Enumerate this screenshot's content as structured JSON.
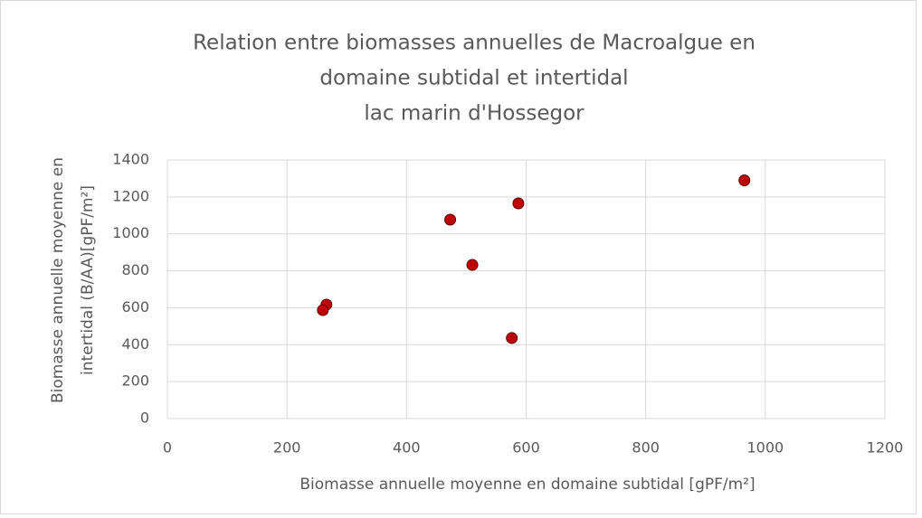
{
  "chart_data": {
    "type": "scatter",
    "title": [
      "Relation entre biomasses annuelles de Macroalgue en",
      "domaine subtidal et intertidal",
      "lac marin d'Hossegor"
    ],
    "x_label": "Biomasse annuelle moyenne en domaine subtidal [gPF/m²]",
    "y_label": [
      "Biomasse annuelle moyenne en",
      "intertidal (B/AA)[gPF/m²]"
    ],
    "x": [
      965,
      587,
      473,
      510,
      266,
      260,
      576
    ],
    "values": [
      1290,
      1165,
      1077,
      832,
      617,
      587,
      436
    ],
    "color": "#c00000",
    "xlim": [
      0,
      1200
    ],
    "xticks": [
      0,
      200,
      400,
      600,
      800,
      1000,
      1200
    ],
    "ylim": [
      0,
      1400
    ],
    "yticks": [
      0,
      200,
      400,
      600,
      800,
      1000,
      1200,
      1400
    ],
    "grid": true
  }
}
